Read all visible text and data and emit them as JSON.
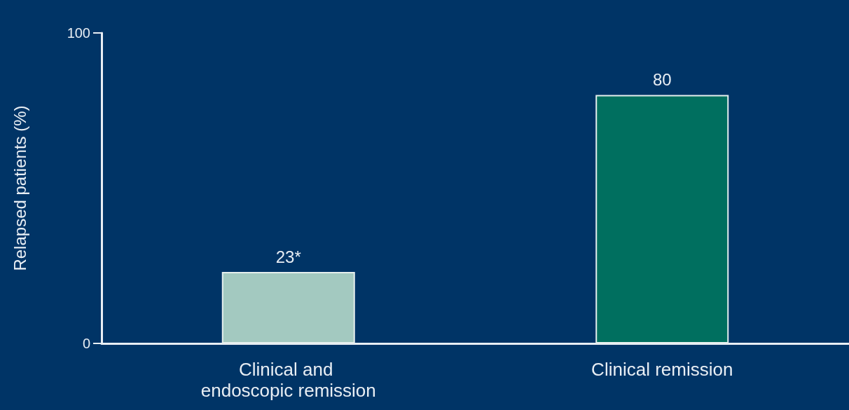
{
  "chart_data": {
    "type": "bar",
    "ylabel": "Relapsed patients (%)",
    "categories": [
      "Clinical and endoscopic remission",
      "Clinical remission"
    ],
    "values": [
      23,
      80
    ],
    "colors": [
      "#a3c9c0",
      "#006f5f"
    ],
    "value_labels": [
      "23*",
      "80"
    ],
    "ylim": [
      0,
      100
    ],
    "yticks": [
      0,
      100
    ],
    "grid": false
  }
}
